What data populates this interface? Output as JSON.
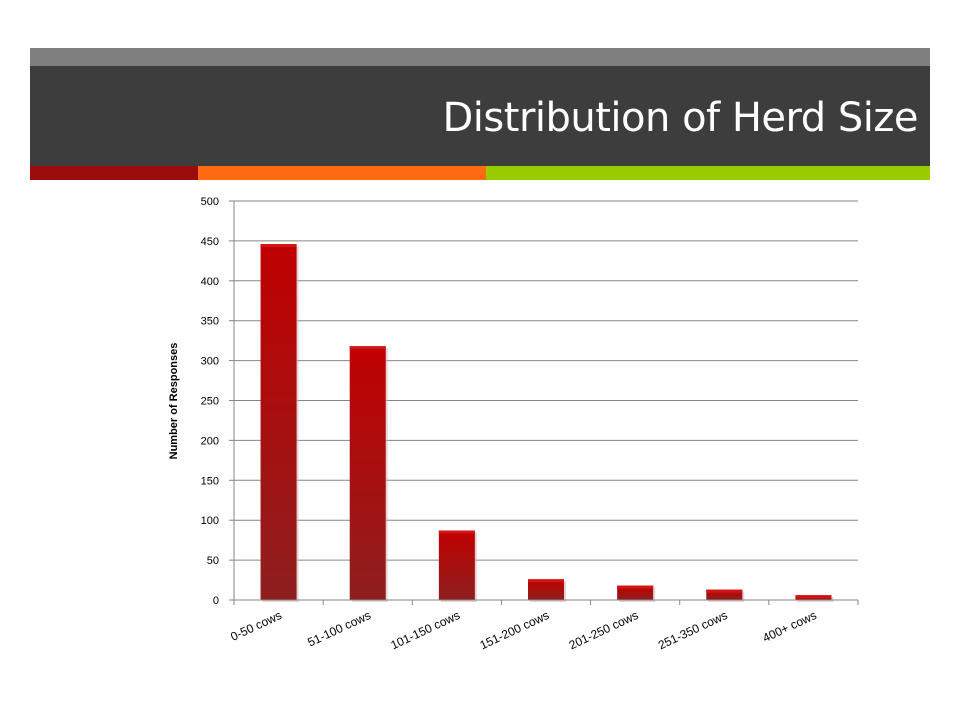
{
  "slide": {
    "title": "Distribution of Herd Size",
    "colors": {
      "title_bar": "#3d3d3d",
      "top_strip": "#7f7f7f",
      "accent_red": "#9b0d0d",
      "accent_orange": "#ff6a13",
      "accent_green": "#99cc00"
    }
  },
  "chart_data": {
    "type": "bar",
    "title": "",
    "xlabel": "",
    "ylabel": "Number of Responses",
    "categories": [
      "0-50 cows",
      "51-100 cows",
      "101-150 cows",
      "151-200 cows",
      "201-250 cows",
      "251-350 cows",
      "400+ cows"
    ],
    "values": [
      446,
      318,
      87,
      26,
      18,
      13,
      6
    ],
    "ylim": [
      0,
      500
    ],
    "yticks": [
      "0",
      "50",
      "100",
      "150",
      "200",
      "250",
      "300",
      "350",
      "400",
      "450",
      "500"
    ],
    "grid": true,
    "bar_color": "#c00000",
    "bar_color_dark": "#8e1f1f"
  }
}
